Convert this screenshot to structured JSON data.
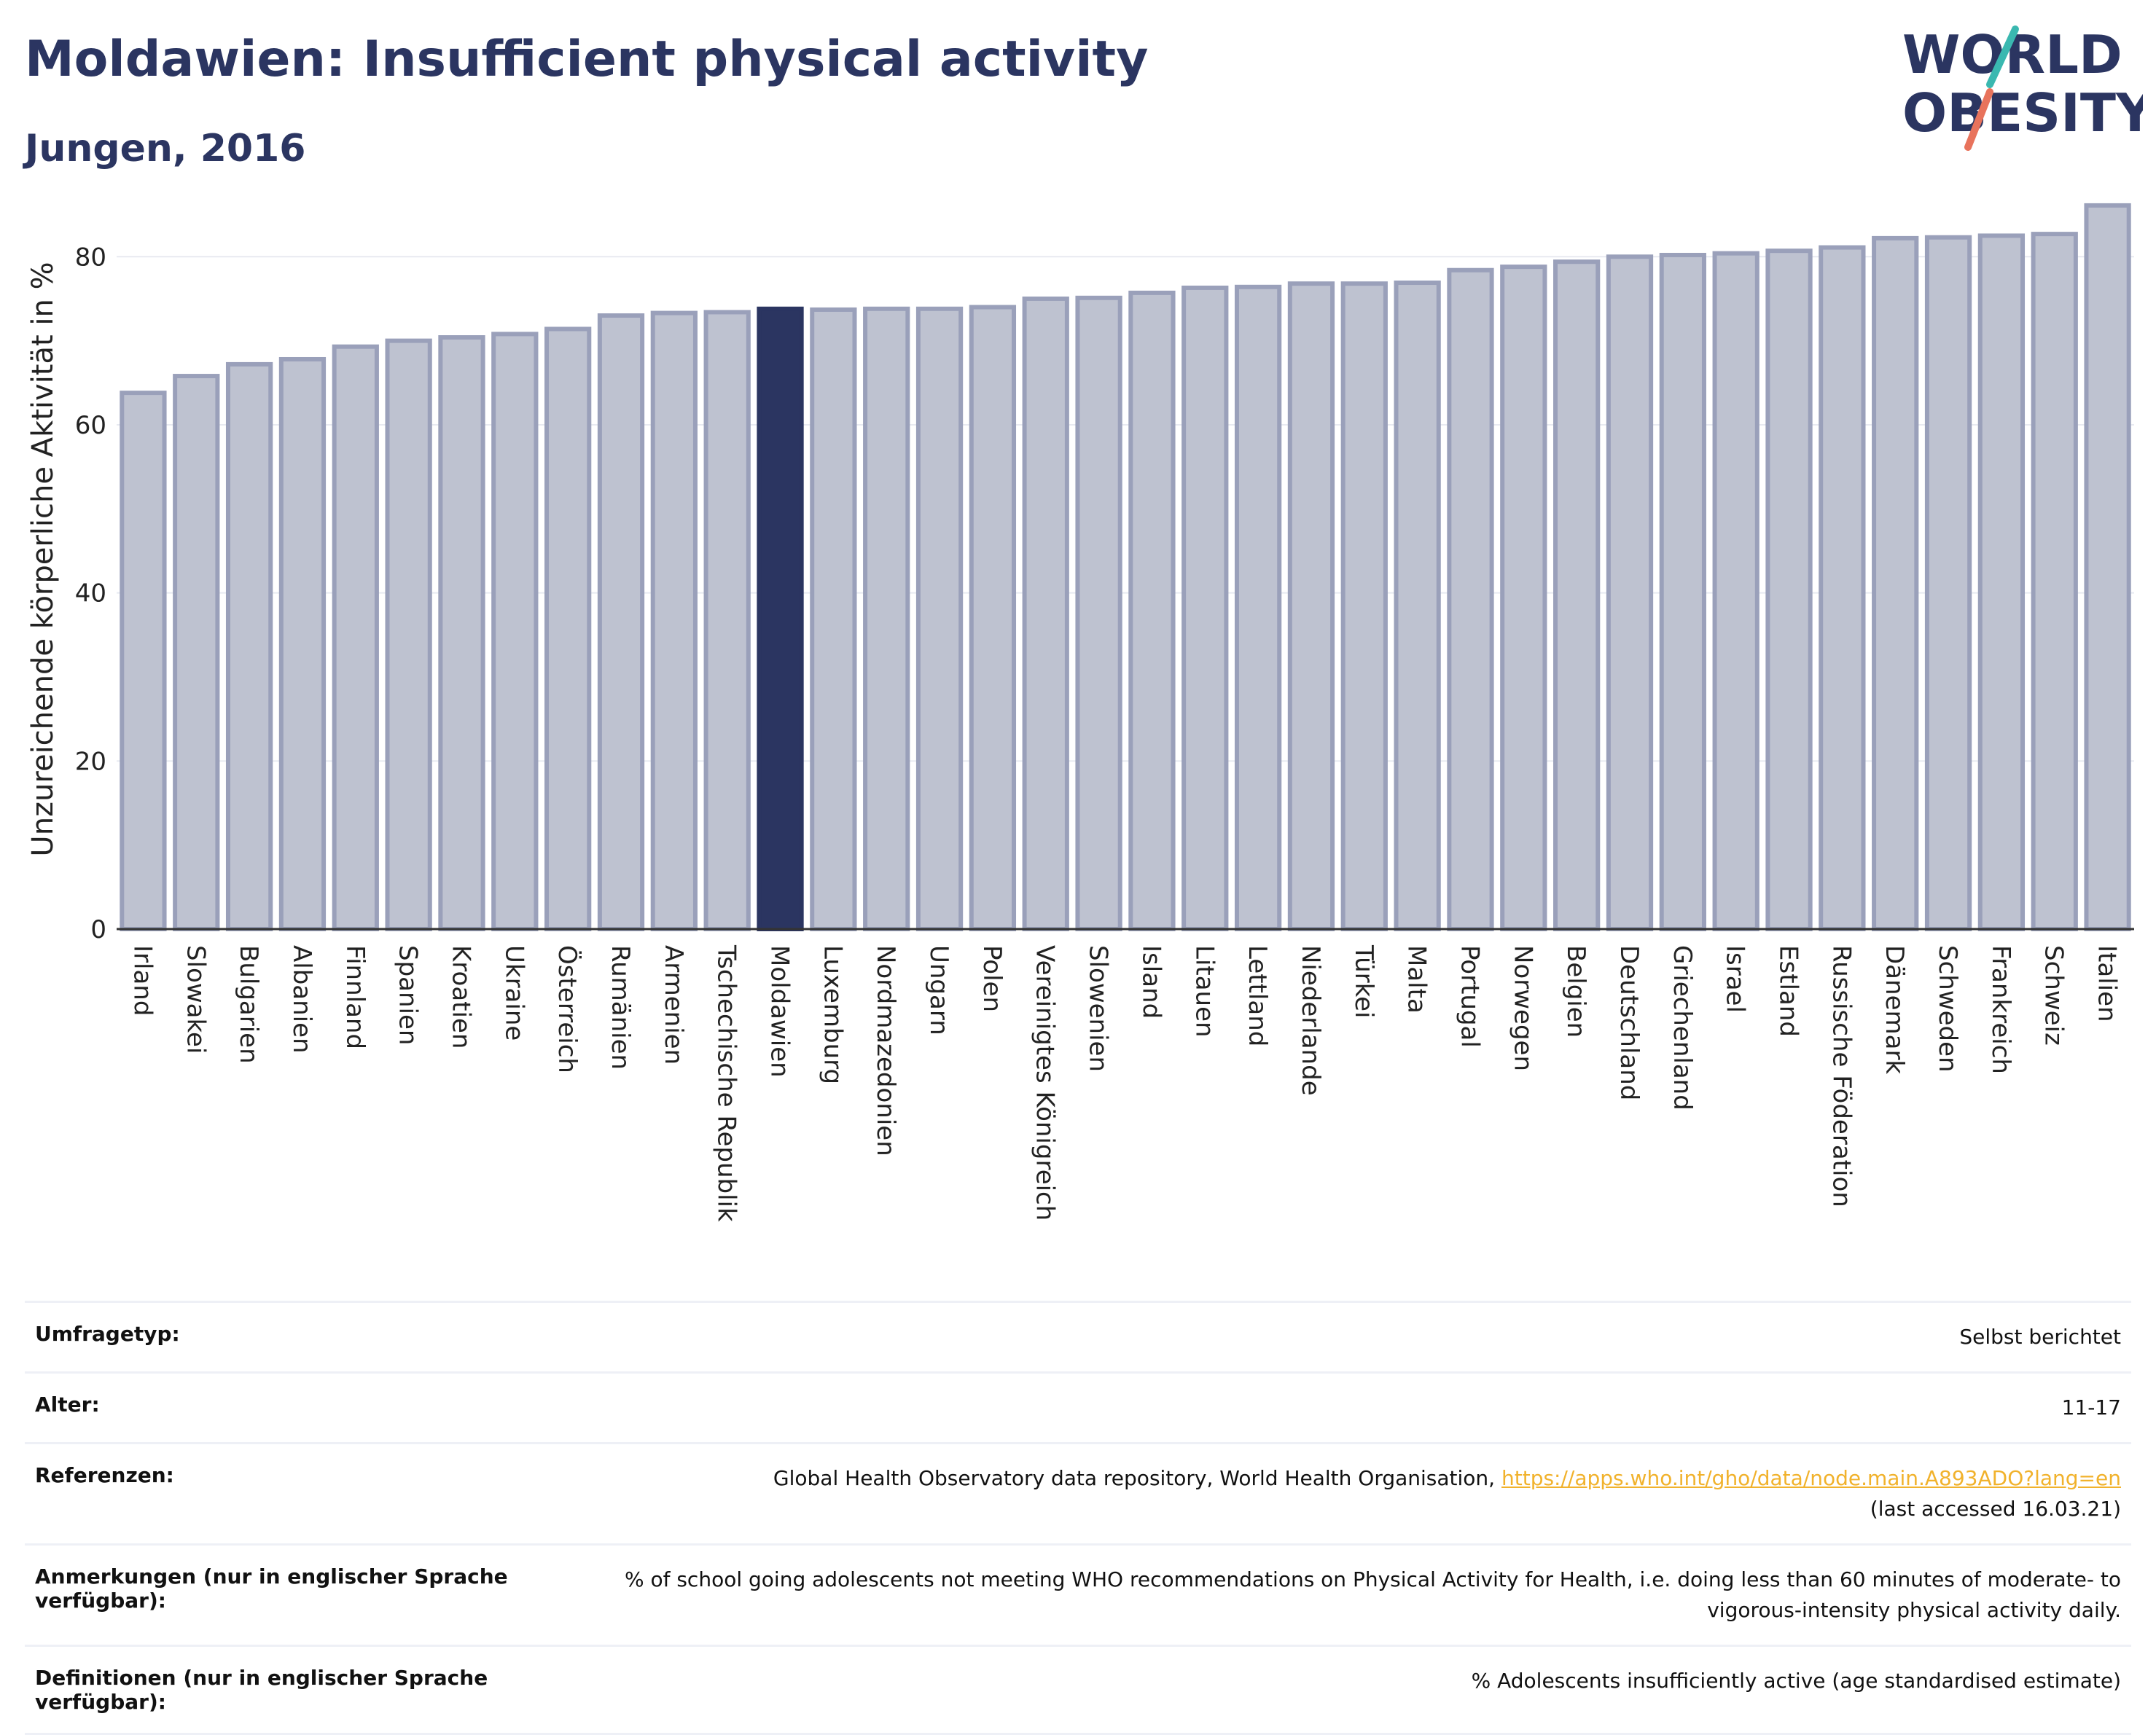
{
  "title": "Moldawien: Insufficient physical activity",
  "subtitle": "Jungen, 2016",
  "logo": {
    "line1": "WORLD",
    "line2": "OBESITY",
    "accent_teal": "#3ab8b0",
    "accent_coral": "#e8735c"
  },
  "colors": {
    "bar": "#bec2d0",
    "bar_border": "#9aa0ba",
    "highlight": "#2b3561",
    "grid": "#e8eaf1"
  },
  "chart_data": {
    "type": "bar",
    "ylabel": "Unzureichende körperliche Aktivität in %",
    "ylim": [
      0,
      88
    ],
    "yticks": [
      0,
      20,
      40,
      60,
      80
    ],
    "grid": true,
    "highlight": "Moldawien",
    "categories": [
      "Irland",
      "Slowakei",
      "Bulgarien",
      "Albanien",
      "Finnland",
      "Spanien",
      "Kroatien",
      "Ukraine",
      "Österreich",
      "Rumänien",
      "Armenien",
      "Tschechische Republik",
      "Moldawien",
      "Luxemburg",
      "Nordmazedonien",
      "Ungarn",
      "Polen",
      "Vereinigtes Königreich",
      "Slowenien",
      "Island",
      "Litauen",
      "Lettland",
      "Niederlande",
      "Türkei",
      "Malta",
      "Portugal",
      "Norwegen",
      "Belgien",
      "Deutschland",
      "Griechenland",
      "Israel",
      "Estland",
      "Russische Föderation",
      "Dänemark",
      "Schweden",
      "Frankreich",
      "Schweiz",
      "Italien"
    ],
    "values": [
      63.8,
      65.8,
      67.2,
      67.8,
      69.3,
      70.0,
      70.4,
      70.8,
      71.4,
      73.0,
      73.3,
      73.4,
      73.8,
      73.7,
      73.8,
      73.8,
      74.0,
      75.0,
      75.1,
      75.7,
      76.3,
      76.4,
      76.8,
      76.8,
      76.9,
      78.4,
      78.8,
      79.4,
      80.0,
      80.2,
      80.4,
      80.7,
      81.1,
      82.2,
      82.3,
      82.5,
      82.7,
      86.1
    ]
  },
  "info": [
    {
      "key": "Umfragetyp:",
      "value": "Selbst berichtet"
    },
    {
      "key": "Alter:",
      "value": "11-17"
    },
    {
      "key": "Referenzen:",
      "value": "Global Health Observatory data repository, World Health Organisation, ",
      "link": "https://apps.who.int/gho/data/node.main.A893ADO?lang=en",
      "value2": "(last accessed 16.03.21)"
    },
    {
      "key": "Anmerkungen (nur in englischer Sprache verfügbar):",
      "value": "% of school going adolescents not meeting WHO recommendations on Physical Activity for Health, i.e. doing less than 60 minutes of moderate- to vigorous-intensity physical activity daily."
    },
    {
      "key": "Definitionen (nur in englischer Sprache verfügbar):",
      "value": "% Adolescents insufficiently active (age standardised estimate)"
    }
  ]
}
